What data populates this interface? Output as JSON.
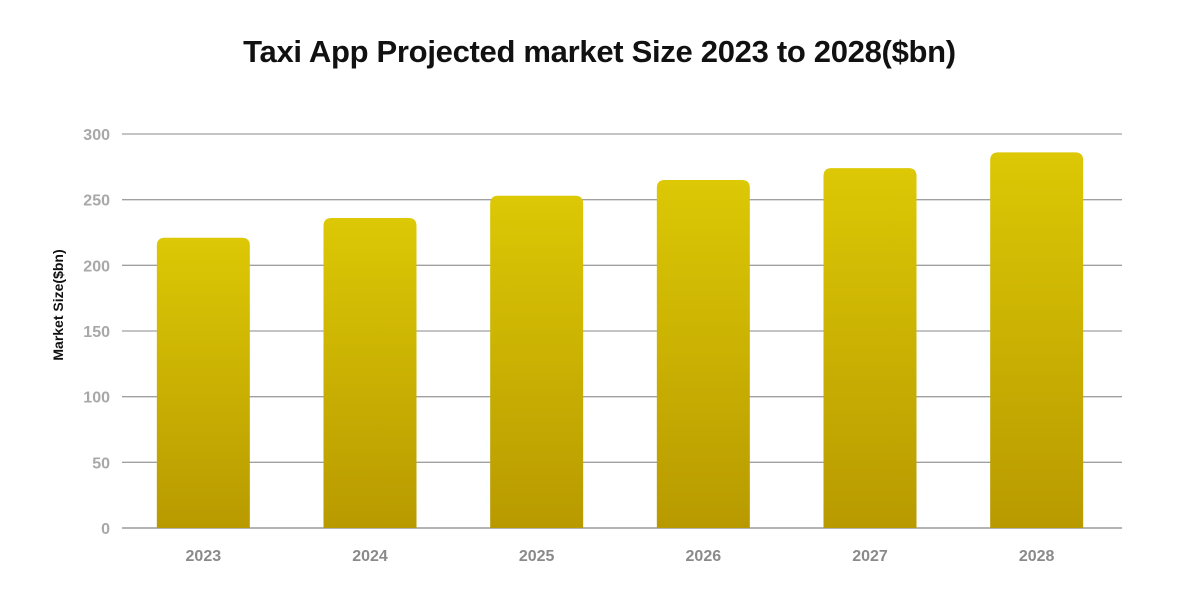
{
  "chart_data": {
    "type": "bar",
    "title": "Taxi App Projected market Size 2023 to 2028($bn)",
    "xlabel": "",
    "ylabel": "Market Size($bn)",
    "categories": [
      "2023",
      "2024",
      "2025",
      "2026",
      "2027",
      "2028"
    ],
    "values": [
      221,
      236,
      253,
      265,
      274,
      286
    ],
    "ylim": [
      0,
      300
    ],
    "yticks": [
      "0",
      "50",
      "100",
      "150",
      "200",
      "250",
      "300"
    ],
    "grid": true,
    "legend": "none",
    "colors": {
      "bar_top": "#dcc805",
      "bar_bottom": "#b89a00",
      "grid": "#a0a0a0"
    }
  }
}
